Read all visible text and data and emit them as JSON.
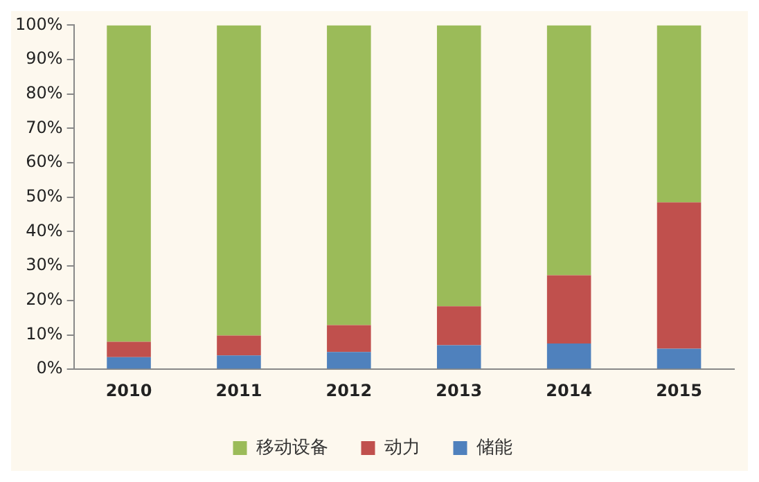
{
  "chart_data": {
    "type": "bar",
    "stacked": true,
    "categories": [
      "2010",
      "2011",
      "2012",
      "2013",
      "2014",
      "2015"
    ],
    "series": [
      {
        "name": "储能",
        "color": "#4f81bd",
        "values": [
          3.5,
          4,
          5,
          7,
          7.5,
          6
        ]
      },
      {
        "name": "动力",
        "color": "#c0504d",
        "values": [
          4.5,
          5.8,
          7.8,
          11.3,
          19.8,
          42.5
        ]
      },
      {
        "name": "移动设备",
        "color": "#9bbb59",
        "values": [
          92,
          90.2,
          87.2,
          81.7,
          72.7,
          51.5
        ]
      }
    ],
    "ylim": [
      0,
      100
    ],
    "yticks": [
      {
        "value": 0,
        "label": "0%"
      },
      {
        "value": 10,
        "label": "10%"
      },
      {
        "value": 20,
        "label": "20%"
      },
      {
        "value": 30,
        "label": "30%"
      },
      {
        "value": 40,
        "label": "40%"
      },
      {
        "value": 50,
        "label": "50%"
      },
      {
        "value": 60,
        "label": "60%"
      },
      {
        "value": 70,
        "label": "70%"
      },
      {
        "value": 80,
        "label": "80%"
      },
      {
        "value": 90,
        "label": "90%"
      },
      {
        "value": 100,
        "label": "100%"
      }
    ],
    "grid": false,
    "legend": "bottom"
  }
}
